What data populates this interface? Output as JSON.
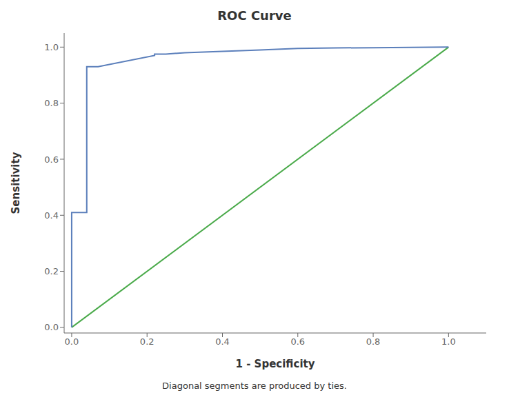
{
  "chart_data": {
    "type": "line",
    "title": "ROC Curve",
    "xlabel": "1 - Specificity",
    "ylabel": "Sensitivity",
    "footnote": "Diagonal segments are produced by ties.",
    "xlim": [
      -0.02,
      1.1
    ],
    "ylim": [
      -0.02,
      1.05
    ],
    "xticks": [
      {
        "value": 0.0,
        "label": "0.0"
      },
      0.2,
      0.4,
      0.6,
      0.8,
      {
        "value": 1.0,
        "label": "1.0"
      }
    ],
    "yticks": [
      {
        "value": 0.0,
        "label": "0.0"
      },
      0.2,
      0.4,
      0.6,
      0.8,
      {
        "value": 1.0,
        "label": "1.0"
      }
    ],
    "grid": false,
    "series": [
      {
        "color": "#4aaa4a",
        "x": [
          0.0,
          1.0
        ],
        "values": [
          0.0,
          1.0
        ]
      },
      {
        "color": "#5b7fbb",
        "x": [
          0.0,
          0.0,
          0.04,
          0.04,
          0.07,
          0.22,
          0.22,
          0.25,
          0.3,
          0.4,
          0.5,
          0.6,
          0.7,
          0.8,
          0.9,
          1.0
        ],
        "values": [
          0.0,
          0.41,
          0.41,
          0.93,
          0.93,
          0.97,
          0.975,
          0.975,
          0.98,
          0.985,
          0.99,
          0.995,
          0.997,
          0.998,
          0.999,
          1.0
        ]
      }
    ]
  }
}
